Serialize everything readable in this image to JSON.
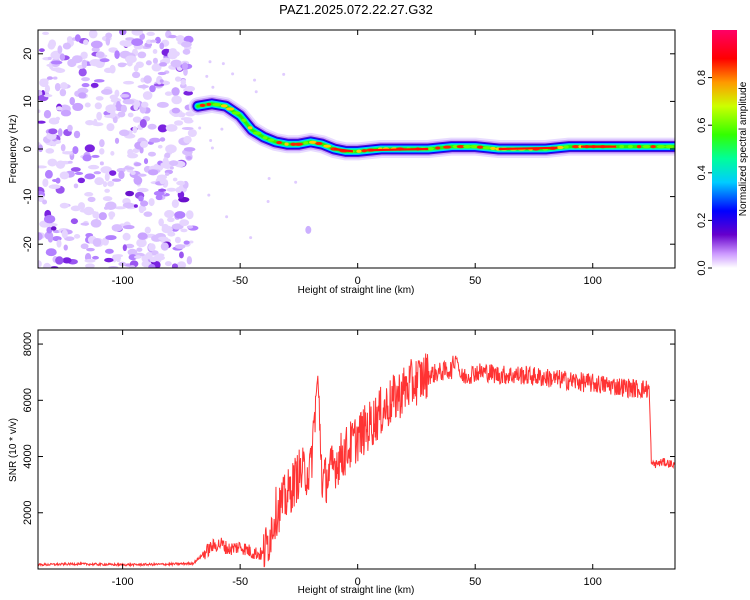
{
  "title": "PAZ1.2025.072.22.27.G32",
  "chart_data": [
    {
      "type": "heatmap",
      "xlabel": "Height of straight line (km)",
      "ylabel": "Frequency (Hz)",
      "xlim": [
        -136,
        135
      ],
      "ylim": [
        -25,
        25
      ],
      "x_ticks": [
        -100,
        -50,
        0,
        50,
        100
      ],
      "y_ticks": [
        -20,
        -10,
        0,
        10,
        20
      ],
      "colorbar": {
        "label": "Normalized spectral amplitude",
        "range": [
          0,
          1
        ],
        "ticks": [
          0.0,
          0.2,
          0.4,
          0.6,
          0.8
        ],
        "colors": [
          "#ffffff",
          "#cc99ff",
          "#6600cc",
          "#0000ff",
          "#00ccff",
          "#00ff66",
          "#66ff00",
          "#ffff00",
          "#ff9900",
          "#ff0000",
          "#ff0066"
        ]
      },
      "noise_region_x": [
        -136,
        -70
      ],
      "ridge": {
        "x": [
          -68,
          -62,
          -56,
          -50,
          -45,
          -40,
          -35,
          -30,
          -25,
          -20,
          -15,
          -10,
          -5,
          0,
          10,
          20,
          30,
          40,
          50,
          60,
          70,
          80,
          90,
          100,
          110,
          120,
          135
        ],
        "y": [
          9,
          9.5,
          9,
          7,
          4,
          2.5,
          1.5,
          1,
          1,
          1.5,
          1,
          0,
          -0.5,
          -0.5,
          0,
          0,
          0,
          0.5,
          0.5,
          0,
          0,
          0,
          0.5,
          0.5,
          0.5,
          0.5,
          0.5
        ]
      },
      "grid": false
    },
    {
      "type": "line",
      "xlabel": "Height of straight line (km)",
      "ylabel": "SNR (10 * v/v)",
      "xlim": [
        -136,
        135
      ],
      "ylim": [
        0,
        8500
      ],
      "x_ticks": [
        -100,
        -50,
        0,
        50,
        100
      ],
      "y_ticks": [
        2000,
        4000,
        6000,
        8000
      ],
      "line_color": "#ff3333",
      "series": [
        {
          "x": [
            -136,
            -120,
            -100,
            -80,
            -70,
            -66,
            -62,
            -58,
            -55,
            -50,
            -45,
            -40,
            -38,
            -35,
            -30,
            -25,
            -20,
            -17,
            -15,
            -10,
            -5,
            0,
            5,
            10,
            15,
            20,
            25,
            30,
            35,
            40,
            42,
            44,
            50,
            55,
            60,
            70,
            80,
            90,
            100,
            110,
            120,
            124,
            125,
            130,
            135
          ],
          "y": [
            150,
            180,
            150,
            170,
            200,
            500,
            800,
            900,
            700,
            800,
            600,
            500,
            1000,
            2000,
            2600,
            3400,
            3500,
            6900,
            3000,
            3700,
            4200,
            4700,
            5100,
            5600,
            6000,
            6400,
            6700,
            6900,
            7000,
            7100,
            7600,
            6800,
            7000,
            7000,
            6900,
            6900,
            6800,
            6700,
            6600,
            6500,
            6400,
            6400,
            3700,
            3800,
            3700
          ]
        }
      ],
      "grid": false
    }
  ]
}
